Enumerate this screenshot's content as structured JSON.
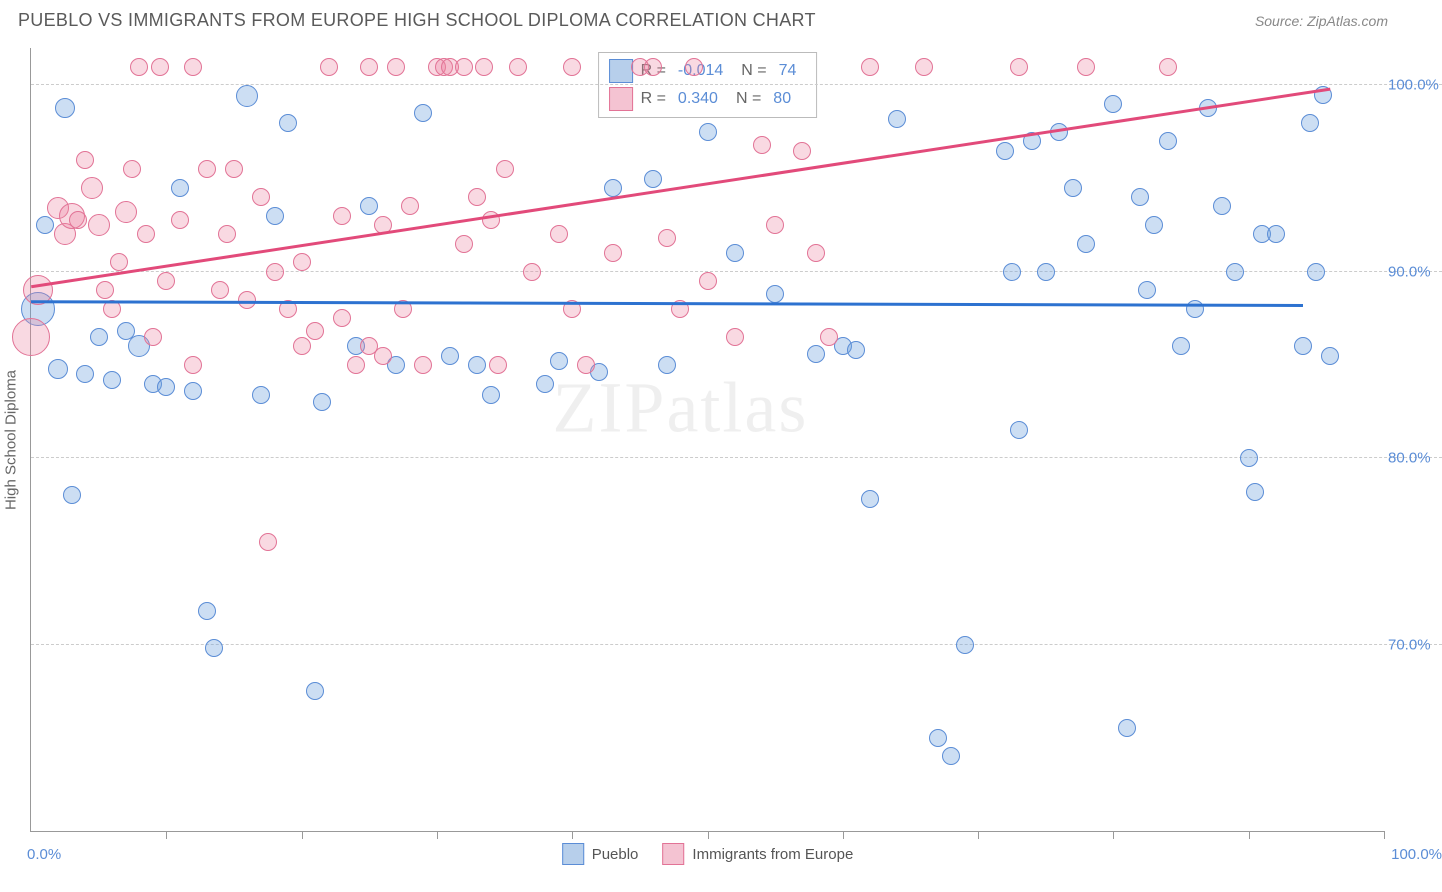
{
  "header": {
    "title": "PUEBLO VS IMMIGRANTS FROM EUROPE HIGH SCHOOL DIPLOMA CORRELATION CHART",
    "source": "Source: ZipAtlas.com"
  },
  "watermark": {
    "part1": "ZIP",
    "part2": "atlas"
  },
  "chart": {
    "type": "scatter",
    "ylabel": "High School Diploma",
    "xlim": [
      0,
      100
    ],
    "ylim": [
      60,
      102
    ],
    "x_ticks": [
      0,
      10,
      20,
      30,
      40,
      50,
      60,
      70,
      80,
      90,
      100
    ],
    "y_gridlines": [
      70,
      80,
      90,
      100
    ],
    "y_tick_labels": [
      "70.0%",
      "80.0%",
      "90.0%",
      "100.0%"
    ],
    "x_min_label": "0.0%",
    "x_max_label": "100.0%",
    "grid_color": "#cccccc",
    "background": "#ffffff",
    "series": [
      {
        "name": "Pueblo",
        "color_fill": "rgba(110,160,220,0.35)",
        "color_stroke": "#5b8dd6",
        "swatch_fill": "#b7cfeb",
        "swatch_border": "#5b8dd6",
        "trend": {
          "x1": 0,
          "y1": 88.4,
          "x2": 94,
          "y2": 88.2,
          "color": "#2d72d0",
          "width": 2.5
        },
        "stats": {
          "R": "-0.014",
          "N": "74"
        },
        "points": [
          {
            "x": 0.5,
            "y": 88.0,
            "r": 16
          },
          {
            "x": 2,
            "y": 84.8,
            "r": 9
          },
          {
            "x": 2.5,
            "y": 98.8,
            "r": 9
          },
          {
            "x": 3,
            "y": 78.0,
            "r": 8
          },
          {
            "x": 4,
            "y": 84.5,
            "r": 8
          },
          {
            "x": 5,
            "y": 86.5,
            "r": 8
          },
          {
            "x": 6,
            "y": 84.2,
            "r": 8
          },
          {
            "x": 7,
            "y": 86.8,
            "r": 8
          },
          {
            "x": 8,
            "y": 86.0,
            "r": 10
          },
          {
            "x": 9,
            "y": 84.0,
            "r": 8
          },
          {
            "x": 10,
            "y": 83.8,
            "r": 8
          },
          {
            "x": 11,
            "y": 94.5,
            "r": 8
          },
          {
            "x": 12,
            "y": 83.6,
            "r": 8
          },
          {
            "x": 13,
            "y": 71.8,
            "r": 8
          },
          {
            "x": 13.5,
            "y": 69.8,
            "r": 8
          },
          {
            "x": 16,
            "y": 99.4,
            "r": 10
          },
          {
            "x": 17,
            "y": 83.4,
            "r": 8
          },
          {
            "x": 18,
            "y": 93.0,
            "r": 8
          },
          {
            "x": 19,
            "y": 98.0,
            "r": 8
          },
          {
            "x": 21,
            "y": 67.5,
            "r": 8
          },
          {
            "x": 21.5,
            "y": 83.0,
            "r": 8
          },
          {
            "x": 24,
            "y": 86.0,
            "r": 8
          },
          {
            "x": 25,
            "y": 93.5,
            "r": 8
          },
          {
            "x": 27,
            "y": 85.0,
            "r": 8
          },
          {
            "x": 29,
            "y": 98.5,
            "r": 8
          },
          {
            "x": 31,
            "y": 85.5,
            "r": 8
          },
          {
            "x": 33,
            "y": 85.0,
            "r": 8
          },
          {
            "x": 34,
            "y": 83.4,
            "r": 8
          },
          {
            "x": 38,
            "y": 84.0,
            "r": 8
          },
          {
            "x": 39,
            "y": 85.2,
            "r": 8
          },
          {
            "x": 42,
            "y": 84.6,
            "r": 8
          },
          {
            "x": 43,
            "y": 94.5,
            "r": 8
          },
          {
            "x": 46,
            "y": 95.0,
            "r": 8
          },
          {
            "x": 47,
            "y": 85.0,
            "r": 8
          },
          {
            "x": 50,
            "y": 97.5,
            "r": 8
          },
          {
            "x": 52,
            "y": 91.0,
            "r": 8
          },
          {
            "x": 55,
            "y": 88.8,
            "r": 8
          },
          {
            "x": 58,
            "y": 85.6,
            "r": 8
          },
          {
            "x": 60,
            "y": 86.0,
            "r": 8
          },
          {
            "x": 61,
            "y": 85.8,
            "r": 8
          },
          {
            "x": 62,
            "y": 77.8,
            "r": 8
          },
          {
            "x": 64,
            "y": 98.2,
            "r": 8
          },
          {
            "x": 67,
            "y": 65.0,
            "r": 8
          },
          {
            "x": 68,
            "y": 64.0,
            "r": 8
          },
          {
            "x": 69,
            "y": 70.0,
            "r": 8
          },
          {
            "x": 72,
            "y": 96.5,
            "r": 8
          },
          {
            "x": 72.5,
            "y": 90.0,
            "r": 8
          },
          {
            "x": 73,
            "y": 81.5,
            "r": 8
          },
          {
            "x": 74,
            "y": 97.0,
            "r": 8
          },
          {
            "x": 75,
            "y": 90.0,
            "r": 8
          },
          {
            "x": 76,
            "y": 97.5,
            "r": 8
          },
          {
            "x": 77,
            "y": 94.5,
            "r": 8
          },
          {
            "x": 78,
            "y": 91.5,
            "r": 8
          },
          {
            "x": 80,
            "y": 99.0,
            "r": 8
          },
          {
            "x": 81,
            "y": 65.5,
            "r": 8
          },
          {
            "x": 82,
            "y": 94.0,
            "r": 8
          },
          {
            "x": 82.5,
            "y": 89.0,
            "r": 8
          },
          {
            "x": 83,
            "y": 92.5,
            "r": 8
          },
          {
            "x": 84,
            "y": 97.0,
            "r": 8
          },
          {
            "x": 85,
            "y": 86.0,
            "r": 8
          },
          {
            "x": 86,
            "y": 88.0,
            "r": 8
          },
          {
            "x": 87,
            "y": 98.8,
            "r": 8
          },
          {
            "x": 88,
            "y": 93.5,
            "r": 8
          },
          {
            "x": 89,
            "y": 90.0,
            "r": 8
          },
          {
            "x": 90,
            "y": 80.0,
            "r": 8
          },
          {
            "x": 90.5,
            "y": 78.2,
            "r": 8
          },
          {
            "x": 91,
            "y": 92.0,
            "r": 8
          },
          {
            "x": 92,
            "y": 92.0,
            "r": 8
          },
          {
            "x": 94,
            "y": 86.0,
            "r": 8
          },
          {
            "x": 94.5,
            "y": 98.0,
            "r": 8
          },
          {
            "x": 95,
            "y": 90.0,
            "r": 8
          },
          {
            "x": 95.5,
            "y": 99.5,
            "r": 8
          },
          {
            "x": 96,
            "y": 85.5,
            "r": 8
          },
          {
            "x": 1,
            "y": 92.5,
            "r": 8
          }
        ]
      },
      {
        "name": "Immigrants from Europe",
        "color_fill": "rgba(235,130,160,0.30)",
        "color_stroke": "#e27396",
        "swatch_fill": "#f4c3d2",
        "swatch_border": "#e27396",
        "trend": {
          "x1": 0,
          "y1": 89.2,
          "x2": 96,
          "y2": 99.8,
          "color": "#e24a7a",
          "width": 2.5
        },
        "stats": {
          "R": "0.340",
          "N": "80"
        },
        "points": [
          {
            "x": 0,
            "y": 86.5,
            "r": 18
          },
          {
            "x": 0.5,
            "y": 89.0,
            "r": 14
          },
          {
            "x": 2,
            "y": 93.4,
            "r": 10
          },
          {
            "x": 2.5,
            "y": 92.0,
            "r": 10
          },
          {
            "x": 3,
            "y": 93.0,
            "r": 12
          },
          {
            "x": 3.5,
            "y": 92.8,
            "r": 8
          },
          {
            "x": 4,
            "y": 96.0,
            "r": 8
          },
          {
            "x": 4.5,
            "y": 94.5,
            "r": 10
          },
          {
            "x": 5,
            "y": 92.5,
            "r": 10
          },
          {
            "x": 5.5,
            "y": 89.0,
            "r": 8
          },
          {
            "x": 6,
            "y": 88.0,
            "r": 8
          },
          {
            "x": 6.5,
            "y": 90.5,
            "r": 8
          },
          {
            "x": 7,
            "y": 93.2,
            "r": 10
          },
          {
            "x": 7.5,
            "y": 95.5,
            "r": 8
          },
          {
            "x": 8,
            "y": 101.0,
            "r": 8
          },
          {
            "x": 8.5,
            "y": 92.0,
            "r": 8
          },
          {
            "x": 9,
            "y": 86.5,
            "r": 8
          },
          {
            "x": 9.5,
            "y": 101.0,
            "r": 8
          },
          {
            "x": 10,
            "y": 89.5,
            "r": 8
          },
          {
            "x": 11,
            "y": 92.8,
            "r": 8
          },
          {
            "x": 12,
            "y": 101.0,
            "r": 8
          },
          {
            "x": 12,
            "y": 85.0,
            "r": 8
          },
          {
            "x": 13,
            "y": 95.5,
            "r": 8
          },
          {
            "x": 14,
            "y": 89.0,
            "r": 8
          },
          {
            "x": 14.5,
            "y": 92.0,
            "r": 8
          },
          {
            "x": 15,
            "y": 95.5,
            "r": 8
          },
          {
            "x": 16,
            "y": 88.5,
            "r": 8
          },
          {
            "x": 17,
            "y": 94.0,
            "r": 8
          },
          {
            "x": 17.5,
            "y": 75.5,
            "r": 8
          },
          {
            "x": 18,
            "y": 90.0,
            "r": 8
          },
          {
            "x": 19,
            "y": 88.0,
            "r": 8
          },
          {
            "x": 20,
            "y": 86.0,
            "r": 8
          },
          {
            "x": 20,
            "y": 90.5,
            "r": 8
          },
          {
            "x": 21,
            "y": 86.8,
            "r": 8
          },
          {
            "x": 22,
            "y": 101.0,
            "r": 8
          },
          {
            "x": 23,
            "y": 87.5,
            "r": 8
          },
          {
            "x": 23,
            "y": 93.0,
            "r": 8
          },
          {
            "x": 24,
            "y": 85.0,
            "r": 8
          },
          {
            "x": 25,
            "y": 86.0,
            "r": 8
          },
          {
            "x": 25,
            "y": 101.0,
            "r": 8
          },
          {
            "x": 26,
            "y": 92.5,
            "r": 8
          },
          {
            "x": 26,
            "y": 85.5,
            "r": 8
          },
          {
            "x": 27,
            "y": 101.0,
            "r": 8
          },
          {
            "x": 27.5,
            "y": 88.0,
            "r": 8
          },
          {
            "x": 28,
            "y": 93.5,
            "r": 8
          },
          {
            "x": 29,
            "y": 85.0,
            "r": 8
          },
          {
            "x": 30,
            "y": 101.0,
            "r": 8
          },
          {
            "x": 30.5,
            "y": 101.0,
            "r": 8
          },
          {
            "x": 31,
            "y": 101.0,
            "r": 8
          },
          {
            "x": 32,
            "y": 91.5,
            "r": 8
          },
          {
            "x": 32,
            "y": 101.0,
            "r": 8
          },
          {
            "x": 33,
            "y": 94.0,
            "r": 8
          },
          {
            "x": 33.5,
            "y": 101.0,
            "r": 8
          },
          {
            "x": 34,
            "y": 92.8,
            "r": 8
          },
          {
            "x": 34.5,
            "y": 85.0,
            "r": 8
          },
          {
            "x": 35,
            "y": 95.5,
            "r": 8
          },
          {
            "x": 36,
            "y": 101.0,
            "r": 8
          },
          {
            "x": 37,
            "y": 90.0,
            "r": 8
          },
          {
            "x": 39,
            "y": 92.0,
            "r": 8
          },
          {
            "x": 40,
            "y": 101.0,
            "r": 8
          },
          {
            "x": 40,
            "y": 88.0,
            "r": 8
          },
          {
            "x": 41,
            "y": 85.0,
            "r": 8
          },
          {
            "x": 43,
            "y": 91.0,
            "r": 8
          },
          {
            "x": 45,
            "y": 101.0,
            "r": 8
          },
          {
            "x": 46,
            "y": 101.0,
            "r": 8
          },
          {
            "x": 47,
            "y": 91.8,
            "r": 8
          },
          {
            "x": 48,
            "y": 88.0,
            "r": 8
          },
          {
            "x": 49,
            "y": 101.0,
            "r": 8
          },
          {
            "x": 50,
            "y": 89.5,
            "r": 8
          },
          {
            "x": 52,
            "y": 86.5,
            "r": 8
          },
          {
            "x": 54,
            "y": 96.8,
            "r": 8
          },
          {
            "x": 55,
            "y": 92.5,
            "r": 8
          },
          {
            "x": 57,
            "y": 96.5,
            "r": 8
          },
          {
            "x": 58,
            "y": 91.0,
            "r": 8
          },
          {
            "x": 59,
            "y": 86.5,
            "r": 8
          },
          {
            "x": 62,
            "y": 101.0,
            "r": 8
          },
          {
            "x": 66,
            "y": 101.0,
            "r": 8
          },
          {
            "x": 73,
            "y": 101.0,
            "r": 8
          },
          {
            "x": 78,
            "y": 101.0,
            "r": 8
          },
          {
            "x": 84,
            "y": 101.0,
            "r": 8
          }
        ]
      }
    ],
    "legend": [
      {
        "label": "Pueblo",
        "fill": "#b7cfeb",
        "border": "#5b8dd6"
      },
      {
        "label": "Immigrants from Europe",
        "fill": "#f4c3d2",
        "border": "#e27396"
      }
    ]
  }
}
